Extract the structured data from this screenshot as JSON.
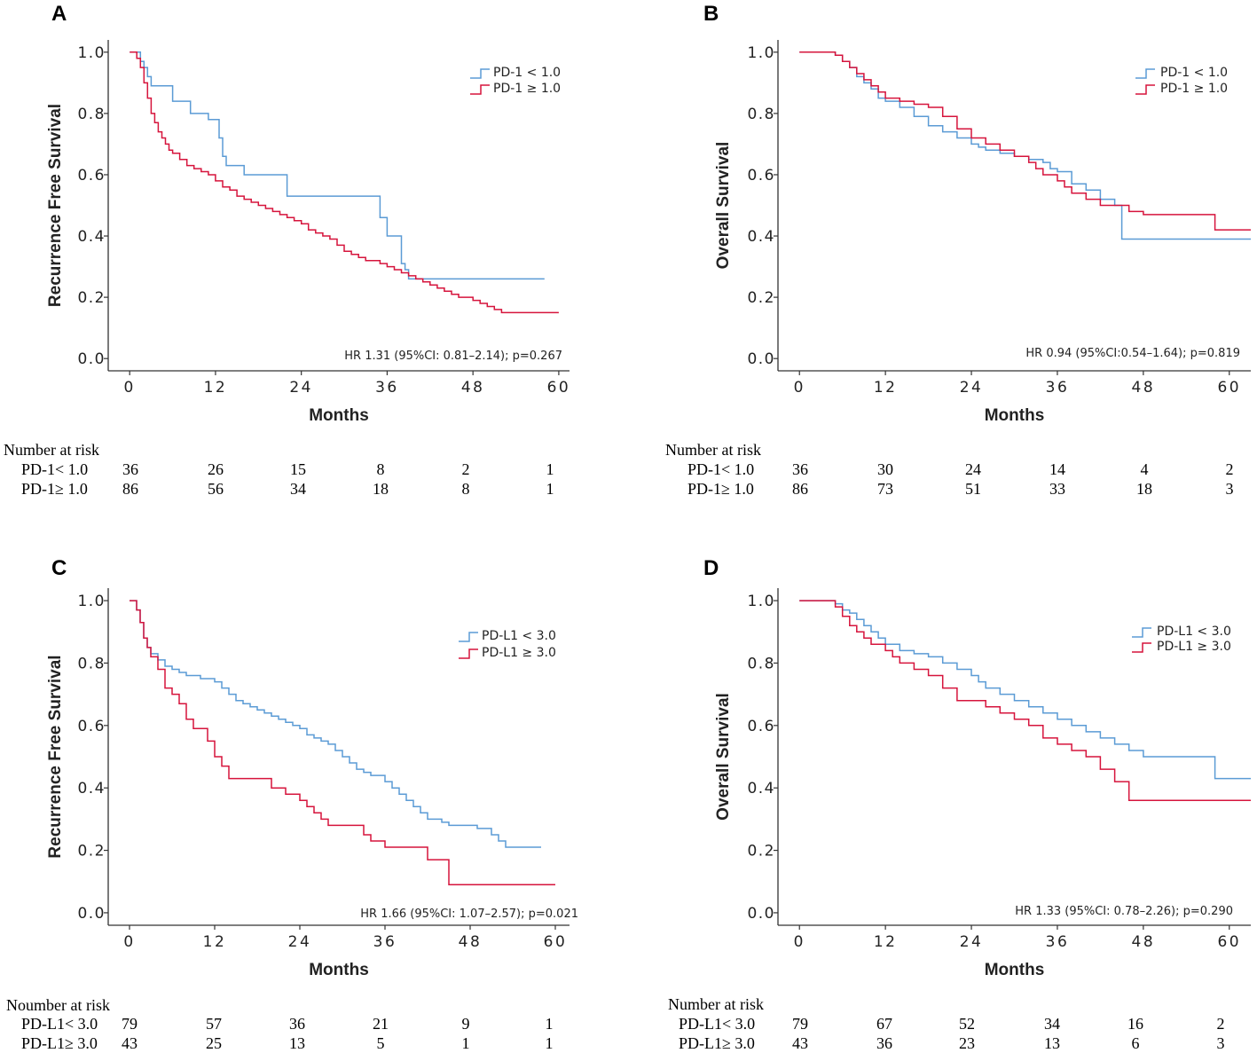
{
  "colors": {
    "blue": "#5b9bd5",
    "red": "#d6143c",
    "axis": "#333333"
  },
  "chart_data": [
    {
      "panel": "A",
      "type": "line",
      "ylabel": "Recurrence Free Survival",
      "xlabel": "Months",
      "xticks": [
        "0",
        "12",
        "24",
        "36",
        "48",
        "60"
      ],
      "yticks": [
        "0.0",
        "0.2",
        "0.4",
        "0.6",
        "0.8",
        "1.0"
      ],
      "xlim": [
        -3,
        61.5
      ],
      "ylim": [
        -0.04,
        1.04
      ],
      "stat_text": "HR 1.31 (95%CI: 0.81–2.14); p=0.267",
      "series": [
        {
          "name": "PD-1 < 1.0",
          "color": "blue",
          "x": [
            0,
            1.5,
            2,
            2.5,
            3,
            3.5,
            6,
            8.5,
            11,
            12.5,
            13,
            13.5,
            16,
            22,
            35,
            36,
            38,
            38.5,
            39,
            58
          ],
          "y": [
            1,
            0.97,
            0.95,
            0.92,
            0.89,
            0.89,
            0.84,
            0.8,
            0.78,
            0.72,
            0.66,
            0.63,
            0.6,
            0.53,
            0.46,
            0.4,
            0.31,
            0.29,
            0.26,
            0.26
          ]
        },
        {
          "name": "PD-1 ≥ 1.0",
          "color": "red",
          "x": [
            0,
            1,
            1.5,
            2,
            2.5,
            3,
            3.5,
            4,
            4.5,
            5,
            5.5,
            6,
            7,
            8,
            9,
            10,
            11,
            12,
            13,
            14,
            15,
            16,
            17,
            18,
            19,
            20,
            21,
            22,
            23,
            24,
            25,
            26,
            27,
            28,
            29,
            30,
            31,
            32,
            33,
            34,
            35,
            36,
            37,
            38,
            39,
            40,
            41,
            42,
            43,
            44,
            45,
            46,
            47,
            48,
            49,
            50,
            51,
            52,
            60
          ],
          "y": [
            1,
            0.98,
            0.95,
            0.9,
            0.85,
            0.8,
            0.77,
            0.74,
            0.72,
            0.7,
            0.68,
            0.67,
            0.65,
            0.63,
            0.62,
            0.61,
            0.6,
            0.58,
            0.56,
            0.55,
            0.53,
            0.52,
            0.51,
            0.5,
            0.49,
            0.48,
            0.47,
            0.46,
            0.45,
            0.44,
            0.42,
            0.41,
            0.4,
            0.39,
            0.37,
            0.35,
            0.34,
            0.33,
            0.32,
            0.32,
            0.31,
            0.3,
            0.29,
            0.28,
            0.27,
            0.26,
            0.25,
            0.24,
            0.23,
            0.22,
            0.21,
            0.2,
            0.2,
            0.19,
            0.18,
            0.17,
            0.16,
            0.15,
            0.15
          ]
        }
      ],
      "risk_table": {
        "title": "Number at risk",
        "rows": [
          {
            "label": "PD-1< 1.0",
            "values": [
              "36",
              "26",
              "15",
              "8",
              "2",
              "1"
            ]
          },
          {
            "label": "PD-1≥ 1.0",
            "values": [
              "86",
              "56",
              "34",
              "18",
              "8",
              "1"
            ]
          }
        ]
      }
    },
    {
      "panel": "B",
      "type": "line",
      "ylabel": "Overall Survival",
      "xlabel": "Months",
      "xticks": [
        "0",
        "12",
        "24",
        "36",
        "48",
        "60"
      ],
      "yticks": [
        "0.0",
        "0.2",
        "0.4",
        "0.6",
        "0.8",
        "1.0"
      ],
      "xlim": [
        -3,
        63
      ],
      "ylim": [
        -0.04,
        1.04
      ],
      "stat_text": "HR 0.94 (95%CI:0.54–1.64); p=0.819",
      "series": [
        {
          "name": "PD-1 < 1.0",
          "color": "blue",
          "x": [
            0,
            4,
            5,
            6,
            7,
            8,
            9,
            10,
            11,
            12,
            14,
            16,
            18,
            20,
            22,
            24,
            25,
            26,
            28,
            30,
            32,
            34,
            35,
            36,
            38,
            40,
            42,
            44,
            45,
            54,
            60,
            63
          ],
          "y": [
            1,
            1,
            0.99,
            0.97,
            0.95,
            0.92,
            0.9,
            0.88,
            0.85,
            0.84,
            0.82,
            0.79,
            0.76,
            0.74,
            0.72,
            0.7,
            0.69,
            0.68,
            0.67,
            0.66,
            0.65,
            0.64,
            0.62,
            0.61,
            0.57,
            0.55,
            0.52,
            0.5,
            0.39,
            0.39,
            0.39,
            0.39
          ]
        },
        {
          "name": "PD-1 ≥ 1.0",
          "color": "red",
          "x": [
            0,
            4,
            5,
            6,
            7,
            8,
            9,
            10,
            11,
            12,
            13,
            14,
            16,
            18,
            20,
            22,
            24,
            26,
            28,
            30,
            32,
            33,
            34,
            36,
            37,
            38,
            40,
            42,
            44,
            46,
            48,
            50,
            56,
            58,
            63
          ],
          "y": [
            1,
            1,
            0.99,
            0.97,
            0.95,
            0.93,
            0.91,
            0.89,
            0.87,
            0.85,
            0.85,
            0.84,
            0.83,
            0.82,
            0.79,
            0.75,
            0.72,
            0.7,
            0.68,
            0.66,
            0.64,
            0.62,
            0.6,
            0.58,
            0.56,
            0.54,
            0.52,
            0.5,
            0.5,
            0.48,
            0.47,
            0.47,
            0.47,
            0.42,
            0.42
          ]
        }
      ],
      "risk_table": {
        "title": "Number at risk",
        "rows": [
          {
            "label": "PD-1< 1.0",
            "values": [
              "36",
              "30",
              "24",
              "14",
              "4",
              "2"
            ]
          },
          {
            "label": "PD-1≥ 1.0",
            "values": [
              "86",
              "73",
              "51",
              "33",
              "18",
              "3"
            ]
          }
        ]
      }
    },
    {
      "panel": "C",
      "type": "line",
      "ylabel": "Recurrence Free Survival",
      "xlabel": "Months",
      "xticks": [
        "0",
        "12",
        "24",
        "36",
        "48",
        "60"
      ],
      "yticks": [
        "0.0",
        "0.2",
        "0.4",
        "0.6",
        "0.8",
        "1.0"
      ],
      "xlim": [
        -3,
        62
      ],
      "ylim": [
        -0.04,
        1.04
      ],
      "stat_text": "HR 1.66 (95%CI: 1.07–2.57); p=0.021",
      "series": [
        {
          "name": "PD-L1 < 3.0",
          "color": "blue",
          "x": [
            0,
            1,
            1.5,
            2,
            2.5,
            3,
            4,
            5,
            6,
            7,
            8,
            9,
            10,
            12,
            13,
            14,
            15,
            16,
            17,
            18,
            19,
            20,
            21,
            22,
            23,
            24,
            25,
            26,
            27,
            28,
            29,
            30,
            31,
            32,
            33,
            34,
            35,
            36,
            37,
            38,
            39,
            40,
            41,
            42,
            43,
            44,
            45,
            46,
            47,
            48,
            49,
            50,
            51,
            52,
            53,
            54,
            58
          ],
          "y": [
            1,
            0.97,
            0.93,
            0.88,
            0.85,
            0.83,
            0.81,
            0.79,
            0.78,
            0.77,
            0.76,
            0.76,
            0.75,
            0.74,
            0.72,
            0.7,
            0.68,
            0.67,
            0.66,
            0.65,
            0.64,
            0.63,
            0.62,
            0.61,
            0.6,
            0.59,
            0.57,
            0.56,
            0.55,
            0.54,
            0.52,
            0.5,
            0.48,
            0.46,
            0.45,
            0.44,
            0.44,
            0.42,
            0.4,
            0.38,
            0.36,
            0.34,
            0.32,
            0.3,
            0.3,
            0.29,
            0.28,
            0.28,
            0.28,
            0.28,
            0.27,
            0.27,
            0.25,
            0.23,
            0.21,
            0.21,
            0.21
          ]
        },
        {
          "name": "PD-L1 ≥ 3.0",
          "color": "red",
          "x": [
            0,
            1,
            1.5,
            2,
            2.5,
            3,
            4,
            5,
            6,
            7,
            8,
            9,
            10,
            11,
            12,
            13,
            14,
            15,
            18,
            20,
            22,
            24,
            25,
            26,
            27,
            28,
            30,
            33,
            34,
            36,
            40,
            42,
            44,
            45,
            46,
            50,
            56,
            60
          ],
          "y": [
            1,
            0.97,
            0.93,
            0.88,
            0.85,
            0.82,
            0.78,
            0.72,
            0.7,
            0.67,
            0.62,
            0.59,
            0.59,
            0.55,
            0.5,
            0.47,
            0.43,
            0.43,
            0.43,
            0.4,
            0.38,
            0.36,
            0.34,
            0.32,
            0.3,
            0.28,
            0.28,
            0.25,
            0.23,
            0.21,
            0.21,
            0.17,
            0.17,
            0.09,
            0.09,
            0.09,
            0.09,
            0.09
          ]
        }
      ],
      "risk_table": {
        "title": "Noumber at risk",
        "rows": [
          {
            "label": "PD-L1< 3.0",
            "values": [
              "79",
              "57",
              "36",
              "21",
              "9",
              "1"
            ]
          },
          {
            "label": "PD-L1≥ 3.0",
            "values": [
              "43",
              "25",
              "13",
              "5",
              "1",
              "1"
            ]
          }
        ]
      }
    },
    {
      "panel": "D",
      "type": "line",
      "ylabel": "Overall Survival",
      "xlabel": "Months",
      "xticks": [
        "0",
        "12",
        "24",
        "36",
        "48",
        "60"
      ],
      "yticks": [
        "0.0",
        "0.2",
        "0.4",
        "0.6",
        "0.8",
        "1.0"
      ],
      "xlim": [
        -3,
        63
      ],
      "ylim": [
        -0.04,
        1.04
      ],
      "stat_text": "HR 1.33 (95%CI: 0.78–2.26); p=0.290",
      "series": [
        {
          "name": "PD-L1 < 3.0",
          "color": "blue",
          "x": [
            0,
            4,
            5,
            6,
            7,
            8,
            9,
            10,
            11,
            12,
            14,
            16,
            18,
            20,
            22,
            24,
            25,
            26,
            28,
            30,
            32,
            34,
            36,
            38,
            40,
            42,
            44,
            46,
            48,
            54,
            56,
            58,
            63
          ],
          "y": [
            1,
            1,
            0.99,
            0.97,
            0.96,
            0.94,
            0.92,
            0.9,
            0.88,
            0.86,
            0.84,
            0.83,
            0.82,
            0.8,
            0.78,
            0.76,
            0.74,
            0.72,
            0.7,
            0.68,
            0.66,
            0.64,
            0.62,
            0.6,
            0.58,
            0.56,
            0.54,
            0.52,
            0.5,
            0.5,
            0.5,
            0.43,
            0.43
          ]
        },
        {
          "name": "PD-L1 ≥ 3.0",
          "color": "red",
          "x": [
            0,
            4,
            5,
            6,
            7,
            8,
            9,
            10,
            12,
            13,
            14,
            16,
            18,
            20,
            22,
            24,
            26,
            28,
            30,
            32,
            34,
            36,
            38,
            40,
            42,
            44,
            46,
            48,
            54,
            63
          ],
          "y": [
            1,
            1,
            0.98,
            0.95,
            0.92,
            0.9,
            0.88,
            0.86,
            0.84,
            0.82,
            0.8,
            0.78,
            0.76,
            0.72,
            0.68,
            0.68,
            0.66,
            0.64,
            0.62,
            0.6,
            0.56,
            0.54,
            0.52,
            0.5,
            0.46,
            0.42,
            0.36,
            0.36,
            0.36,
            0.36
          ]
        }
      ],
      "risk_table": {
        "title": "Number at risk",
        "rows": [
          {
            "label": "PD-L1< 3.0",
            "values": [
              "79",
              "67",
              "52",
              "34",
              "16",
              "2"
            ]
          },
          {
            "label": "PD-L1≥ 3.0",
            "values": [
              "43",
              "36",
              "23",
              "13",
              "6",
              "3"
            ]
          }
        ]
      }
    }
  ]
}
